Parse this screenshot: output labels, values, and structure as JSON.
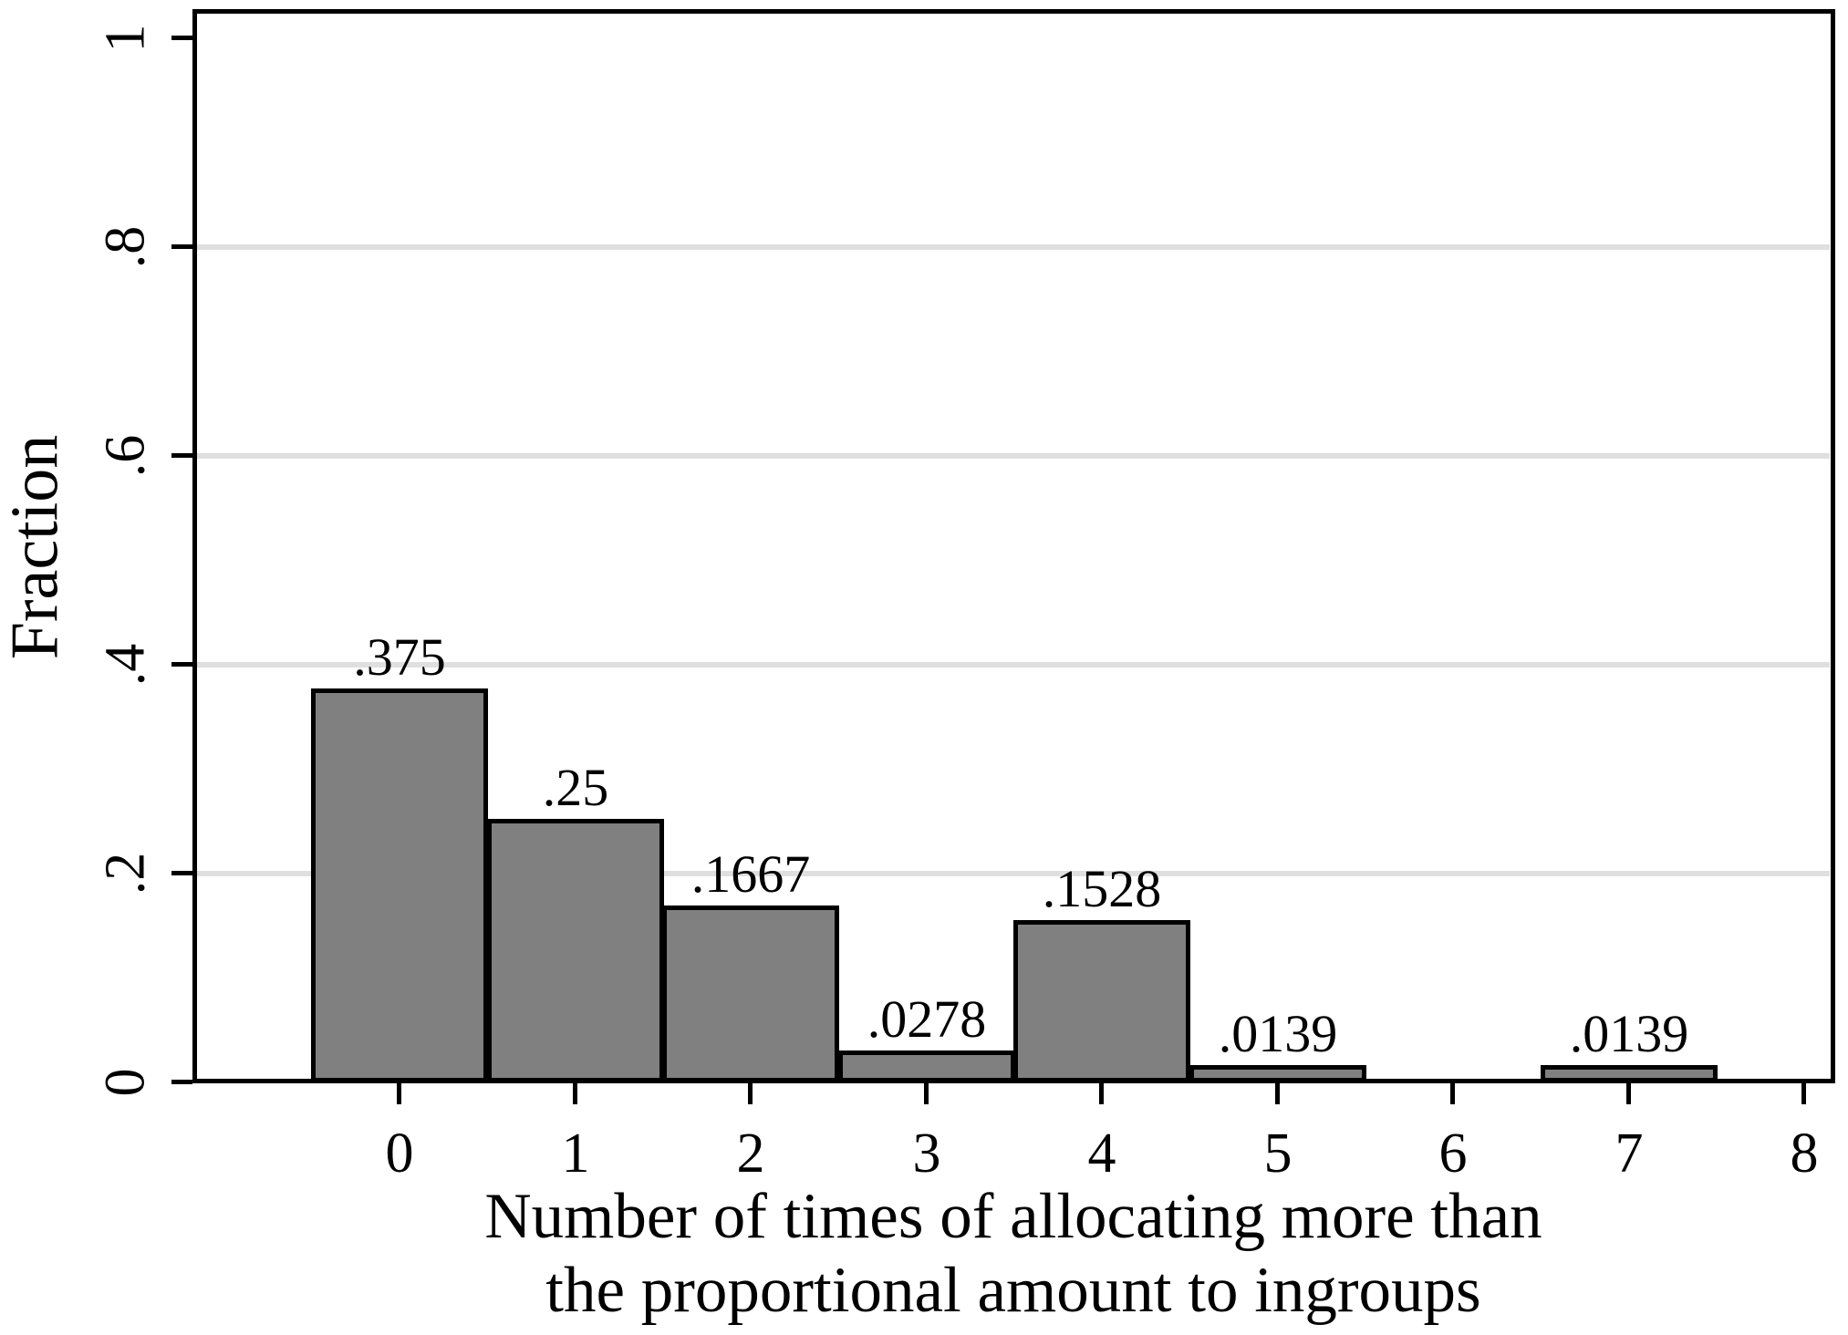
{
  "chart_data": {
    "type": "bar",
    "title": "",
    "ylabel": "Fraction",
    "xlabel_lines": [
      "Number of times of allocating more than",
      "the proportional amount to ingroups"
    ],
    "categories": [
      "0",
      "1",
      "2",
      "3",
      "4",
      "5",
      "6",
      "7",
      "8"
    ],
    "values": [
      0.375,
      0.25,
      0.1667,
      0.0278,
      0.1528,
      0.0139,
      0,
      0.0139,
      0
    ],
    "bar_labels": [
      ".375",
      ".25",
      ".1667",
      ".0278",
      ".1528",
      ".0139",
      "",
      ".0139",
      ""
    ],
    "y_ticks": [
      {
        "v": 0,
        "label": "0"
      },
      {
        "v": 0.2,
        "label": ".2"
      },
      {
        "v": 0.4,
        "label": ".4"
      },
      {
        "v": 0.6,
        "label": ".6"
      },
      {
        "v": 0.8,
        "label": ".8"
      },
      {
        "v": 1,
        "label": "1"
      }
    ],
    "gridline_values": [
      0.2,
      0.4,
      0.6,
      0.8
    ],
    "ylim": [
      0,
      1.026
    ],
    "xlim": [
      -1.17,
      8.16
    ],
    "grid": true,
    "legend": "none",
    "colors": {
      "bar_fill": "#808080",
      "bar_border": "#000000",
      "gridline": "#dfdfdf",
      "axis": "#000000",
      "text": "#000000",
      "background": "#ffffff"
    }
  }
}
